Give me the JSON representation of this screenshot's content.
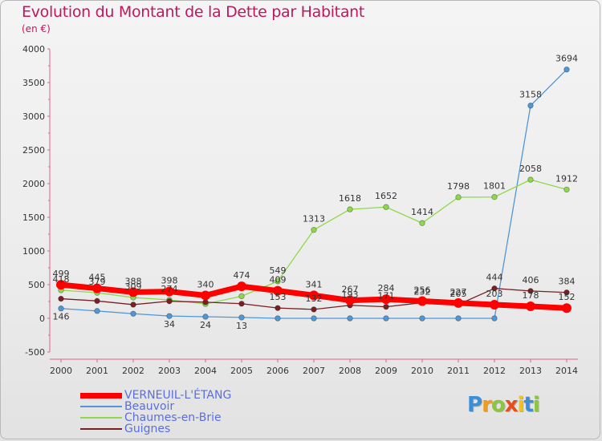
{
  "chart_data": {
    "type": "line",
    "title": "Evolution du Montant de la Dette par Habitant",
    "subtitle": "(en €)",
    "x": [
      "2000",
      "2001",
      "2002",
      "2003",
      "2004",
      "2005",
      "2006",
      "2007",
      "2008",
      "2009",
      "2010",
      "2011",
      "2012",
      "2013",
      "2014"
    ],
    "ylim": [
      -500,
      4000
    ],
    "yticks": [
      -500,
      0,
      500,
      1000,
      1500,
      2000,
      2500,
      3000,
      3500,
      4000
    ],
    "grid": false,
    "legend_position": "bottom-left",
    "series": [
      {
        "name": "VERNEUIL-L'ÉTANG",
        "color": "#ff0000",
        "values": [
          499,
          445,
          388,
          398,
          340,
          474,
          409,
          341,
          267,
          284,
          256,
          227,
          203,
          178,
          152
        ],
        "labels": [
          "499",
          "445",
          "388",
          "398",
          "340",
          "474",
          "409",
          "341",
          "267",
          "284",
          "256",
          "227",
          "203",
          "178",
          "152"
        ]
      },
      {
        "name": "Beauvoir",
        "color": "#4f97d6",
        "values": [
          146,
          109,
          68,
          34,
          24,
          13,
          0,
          0,
          0,
          0,
          0,
          0,
          0,
          3158,
          3694
        ],
        "labels": [
          "146",
          "",
          "",
          "34",
          "24",
          "13",
          "",
          "",
          "",
          "",
          "",
          "",
          "",
          "3158",
          "3694"
        ]
      },
      {
        "name": "Chaumes-en-Brie",
        "color": "#8fd84a",
        "values": [
          418,
          379,
          309,
          274,
          213,
          329,
          549,
          1313,
          1618,
          1652,
          1414,
          1798,
          1801,
          2058,
          1912
        ],
        "labels": [
          "418",
          "379",
          "309",
          "274",
          "",
          "",
          "549",
          "1313",
          "1618",
          "1652",
          "1414",
          "1798",
          "1801",
          "2058",
          "1912"
        ]
      },
      {
        "name": "Guignes",
        "color": "#7a2024",
        "values": [
          291,
          258,
          203,
          254,
          240,
          217,
          153,
          132,
          193,
          171,
          232,
          205,
          444,
          406,
          384
        ],
        "labels": [
          "",
          "",
          "",
          "",
          "",
          "",
          "153",
          "132",
          "193",
          "171",
          "232",
          "205",
          "444",
          "406",
          "384"
        ]
      }
    ]
  },
  "logo": {
    "letters": [
      "P",
      "r",
      "o",
      "x",
      "i",
      "t",
      "i"
    ],
    "colors": [
      "#3a8fd8",
      "#f29a1e",
      "#8cc63f",
      "#e84d1c",
      "#f2c31e",
      "#3a8fd8",
      "#8cc63f"
    ]
  }
}
